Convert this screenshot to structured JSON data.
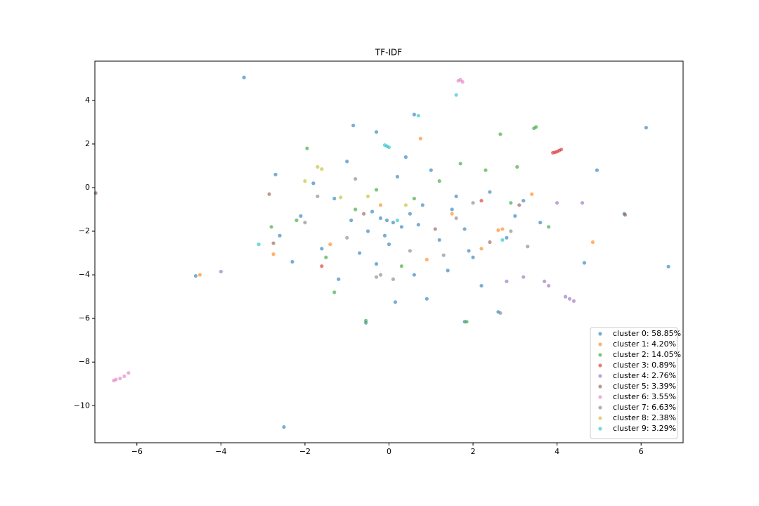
{
  "chart_data": {
    "type": "scatter",
    "title": "TF-IDF",
    "xlim": [
      -7,
      7
    ],
    "ylim": [
      -11.7,
      5.8
    ],
    "xticks": [
      {
        "value": -6,
        "label": "−6"
      },
      {
        "value": -4,
        "label": "−4"
      },
      {
        "value": -2,
        "label": "−2"
      },
      0,
      2,
      4,
      6
    ],
    "yticks": [
      {
        "value": -10,
        "label": "−10"
      },
      {
        "value": -8,
        "label": "−8"
      },
      {
        "value": -6,
        "label": "−6"
      },
      {
        "value": -4,
        "label": "−4"
      },
      {
        "value": -2,
        "label": "−2"
      },
      0,
      2,
      4
    ],
    "grid": false,
    "legend": "lower right",
    "series": [
      {
        "name": "cluster 0: 58.85%",
        "color": "#1f77b4",
        "x": [
          0.1,
          -0.2,
          0.3,
          0.5,
          -0.5,
          0.8,
          -0.9,
          1.2,
          -1.3,
          1.5,
          -1.6,
          2.0,
          -2.1,
          2.4,
          0.0,
          0.2,
          -0.3,
          0.6,
          1.0,
          -1.0,
          1.8,
          -1.8,
          2.8,
          -2.6,
          3.2,
          3.6,
          -0.7,
          0.9,
          1.4,
          -1.2,
          0.4,
          -0.4,
          2.2,
          -2.3,
          3.0,
          1.6,
          -0.1,
          0.7,
          -3.45,
          -2.5,
          6.65,
          6.12,
          -4.6,
          0.6,
          -0.3,
          1.8,
          -0.55,
          5.6,
          4.65,
          4.95,
          -0.85,
          1.9,
          2.6,
          -2.7,
          0.15,
          -0.05
        ],
        "values": [
          -1.6,
          -1.4,
          -1.8,
          -1.2,
          -2.0,
          -0.8,
          -1.5,
          -2.4,
          -0.5,
          -1.0,
          -2.8,
          -3.2,
          -1.3,
          -0.2,
          -2.6,
          0.5,
          -3.5,
          -4.0,
          0.8,
          1.2,
          -1.9,
          0.2,
          -2.3,
          -2.2,
          -0.6,
          -1.6,
          -3.0,
          -5.1,
          -3.8,
          -4.2,
          1.4,
          -1.1,
          -4.5,
          -3.4,
          -1.3,
          -0.4,
          -2.2,
          -1.7,
          5.05,
          -10.98,
          -3.62,
          2.75,
          -4.05,
          3.35,
          2.55,
          -6.15,
          -6.2,
          -1.2,
          -3.45,
          0.8,
          2.85,
          -2.9,
          -5.7,
          0.6,
          -5.25,
          -1.5
        ]
      },
      {
        "name": "cluster 1: 4.20%",
        "color": "#ff7f0e",
        "x": [
          -2.75,
          2.6,
          2.7,
          0.75,
          -4.5,
          4.85,
          1.5,
          -0.2,
          2.2,
          3.4,
          -1.4,
          0.9
        ],
        "values": [
          -3.05,
          -1.95,
          -1.9,
          2.25,
          -4.0,
          -2.5,
          -1.2,
          -0.8,
          -2.8,
          -0.3,
          -2.6,
          -3.3
        ]
      },
      {
        "name": "cluster 2: 14.05%",
        "color": "#2ca02c",
        "x": [
          3.5,
          3.45,
          3.05,
          2.65,
          -1.95,
          -2.8,
          -1.3,
          -0.55,
          1.85,
          1.2,
          0.6,
          -0.8,
          2.3,
          -1.5,
          0.3,
          3.8,
          -0.3,
          1.7,
          2.9,
          -2.2
        ],
        "values": [
          2.78,
          2.72,
          0.95,
          2.45,
          1.8,
          -1.8,
          -4.8,
          -6.1,
          -6.15,
          0.3,
          -0.5,
          -1.0,
          0.8,
          -3.2,
          -3.6,
          -1.8,
          -0.1,
          1.1,
          -0.7,
          -1.5
        ]
      },
      {
        "name": "cluster 3: 0.89%",
        "color": "#d62728",
        "x": [
          3.9,
          4.0,
          4.05,
          4.1,
          3.95,
          -1.6,
          2.2
        ],
        "values": [
          1.6,
          1.65,
          1.7,
          1.75,
          1.62,
          -3.6,
          -0.6
        ]
      },
      {
        "name": "cluster 4: 2.76%",
        "color": "#9467bd",
        "x": [
          4.2,
          4.3,
          4.4,
          3.8,
          3.7,
          -4.0,
          3.2,
          4.0,
          2.8,
          4.6
        ],
        "values": [
          -5.0,
          -5.1,
          -5.2,
          -4.5,
          -4.3,
          -3.85,
          -4.1,
          -0.7,
          -4.3,
          -0.7
        ]
      },
      {
        "name": "cluster 5: 3.39%",
        "color": "#8c564b",
        "x": [
          -6.98,
          5.62,
          -2.85,
          -2.75,
          1.1,
          3.1,
          -0.6,
          2.4
        ],
        "values": [
          -0.25,
          -1.25,
          -0.3,
          -2.55,
          -1.9,
          -0.8,
          -1.2,
          -2.5
        ]
      },
      {
        "name": "cluster 6: 3.55%",
        "color": "#e377c2",
        "x": [
          -6.55,
          -6.5,
          -6.4,
          -6.3,
          -6.2,
          1.65,
          1.7,
          1.75
        ],
        "values": [
          -8.85,
          -8.8,
          -8.75,
          -8.65,
          -8.5,
          4.9,
          4.95,
          4.85
        ]
      },
      {
        "name": "cluster 7: 6.63%",
        "color": "#7f7f7f",
        "x": [
          -0.3,
          -0.2,
          2.65,
          1.6,
          -1.0,
          0.5,
          2.0,
          3.3,
          -2.0,
          1.3,
          -0.8,
          2.9,
          0.1,
          -1.7
        ],
        "values": [
          -4.1,
          -4.0,
          -5.75,
          -1.4,
          -2.3,
          -2.9,
          -0.7,
          -2.7,
          -1.6,
          -3.1,
          0.4,
          -2.0,
          -4.2,
          -0.4
        ]
      },
      {
        "name": "cluster 8: 2.38%",
        "color": "#bcbd22",
        "x": [
          -1.7,
          -1.6,
          -2.0,
          -1.15,
          0.4,
          -0.5
        ],
        "values": [
          0.95,
          0.85,
          0.3,
          -0.45,
          -0.8,
          -0.4
        ]
      },
      {
        "name": "cluster 9: 3.29%",
        "color": "#17becf",
        "x": [
          -0.1,
          -0.05,
          0.0,
          0.7,
          1.6,
          2.7,
          -3.1,
          0.2
        ],
        "values": [
          1.95,
          1.9,
          1.85,
          3.3,
          4.25,
          -2.4,
          -2.6,
          -1.5
        ]
      }
    ]
  }
}
